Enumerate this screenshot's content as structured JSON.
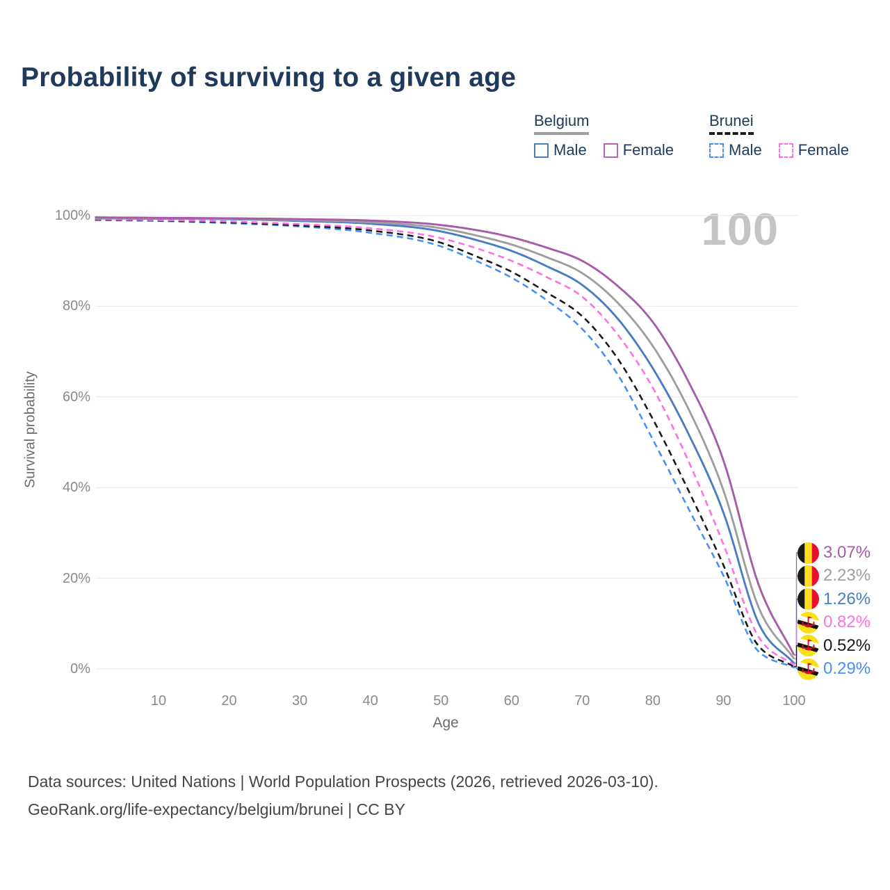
{
  "title": "Probability of surviving to a given age",
  "watermark": "100",
  "legend": {
    "groups": [
      {
        "name": "Belgium",
        "underline_style": "solid",
        "underline_color": "#9e9e9e",
        "items": [
          {
            "label": "Male",
            "color": "#4a7cc2",
            "dashed": false
          },
          {
            "label": "Female",
            "color": "#b565b3",
            "dashed": false
          }
        ]
      },
      {
        "name": "Brunei",
        "underline_style": "dashed",
        "underline_color": "#1a1a1a",
        "items": [
          {
            "label": "Male",
            "color": "#4490f8",
            "dashed": true
          },
          {
            "label": "Female",
            "color": "#ff70e0",
            "dashed": true
          }
        ]
      }
    ]
  },
  "chart_data": {
    "type": "line",
    "title": "Probability of surviving to a given age",
    "xlabel": "Age",
    "ylabel": "Survival probability",
    "xlim": [
      0,
      100
    ],
    "ylim": [
      0,
      100
    ],
    "grid": "horizontal",
    "x_ticks": [
      10,
      20,
      30,
      40,
      50,
      60,
      70,
      80,
      90,
      100
    ],
    "y_ticks": [
      {
        "label": "0%",
        "value": 0
      },
      {
        "label": "20%",
        "value": 20
      },
      {
        "label": "40%",
        "value": 40
      },
      {
        "label": "60%",
        "value": 60
      },
      {
        "label": "80%",
        "value": 80
      },
      {
        "label": "100%",
        "value": 100
      }
    ],
    "x": [
      1,
      10,
      20,
      30,
      40,
      50,
      55,
      60,
      65,
      70,
      75,
      80,
      85,
      90,
      95,
      100
    ],
    "series": [
      {
        "name": "Belgium Female",
        "country": "Belgium",
        "sex": "Female",
        "color": "#a85ba8",
        "dashed": false,
        "end_label": "3.07%",
        "end_value": 3.07,
        "values": [
          99.6,
          99.5,
          99.4,
          99.2,
          98.9,
          97.9,
          96.8,
          95.2,
          92.9,
          90.0,
          84.5,
          76.5,
          63.5,
          46.0,
          18.5,
          3.07
        ]
      },
      {
        "name": "Belgium",
        "country": "Belgium",
        "sex": "Both",
        "color": "#9e9e9e",
        "dashed": false,
        "end_label": "2.23%",
        "end_value": 2.23,
        "values": [
          99.5,
          99.4,
          99.3,
          99.0,
          98.5,
          97.2,
          95.6,
          93.6,
          90.8,
          87.3,
          80.8,
          71.2,
          57.5,
          39.4,
          13.5,
          2.23
        ]
      },
      {
        "name": "Belgium Male",
        "country": "Belgium",
        "sex": "Male",
        "color": "#4a7cc2",
        "dashed": false,
        "end_label": "1.26%",
        "end_value": 1.26,
        "values": [
          99.4,
          99.3,
          99.2,
          98.8,
          98.2,
          96.5,
          94.6,
          92.2,
          88.8,
          84.7,
          77.3,
          66.3,
          52.0,
          34.5,
          10.0,
          1.26
        ]
      },
      {
        "name": "Brunei Female",
        "country": "Brunei",
        "sex": "Female",
        "color": "#ff70e0",
        "dashed": true,
        "end_label": "0.82%",
        "end_value": 0.82,
        "values": [
          99.2,
          99.0,
          98.7,
          98.1,
          97.2,
          95.0,
          92.8,
          90.0,
          86.4,
          82.1,
          73.8,
          62.0,
          46.0,
          27.5,
          7.0,
          0.82
        ]
      },
      {
        "name": "Brunei",
        "country": "Brunei",
        "sex": "Both",
        "color": "#1a1a1a",
        "dashed": true,
        "end_label": "0.52%",
        "end_value": 0.52,
        "values": [
          99.1,
          98.9,
          98.5,
          97.8,
          96.7,
          94.0,
          91.0,
          87.6,
          83.0,
          77.8,
          68.5,
          55.1,
          39.5,
          22.9,
          5.0,
          0.52
        ]
      },
      {
        "name": "Brunei Male",
        "country": "Brunei",
        "sex": "Male",
        "color": "#4490f8",
        "dashed": true,
        "end_label": "0.29%",
        "end_value": 0.29,
        "values": [
          99.0,
          98.8,
          98.3,
          97.6,
          96.2,
          93.2,
          90.0,
          86.3,
          81.3,
          75.0,
          65.0,
          50.6,
          35.5,
          20.6,
          3.8,
          0.29
        ]
      }
    ]
  },
  "footer": {
    "line1": "Data sources: United Nations | World Population Prospects (2026, retrieved 2026-03-10).",
    "line2": "GeoRank.org/life-expectancy/belgium/brunei | CC BY"
  }
}
